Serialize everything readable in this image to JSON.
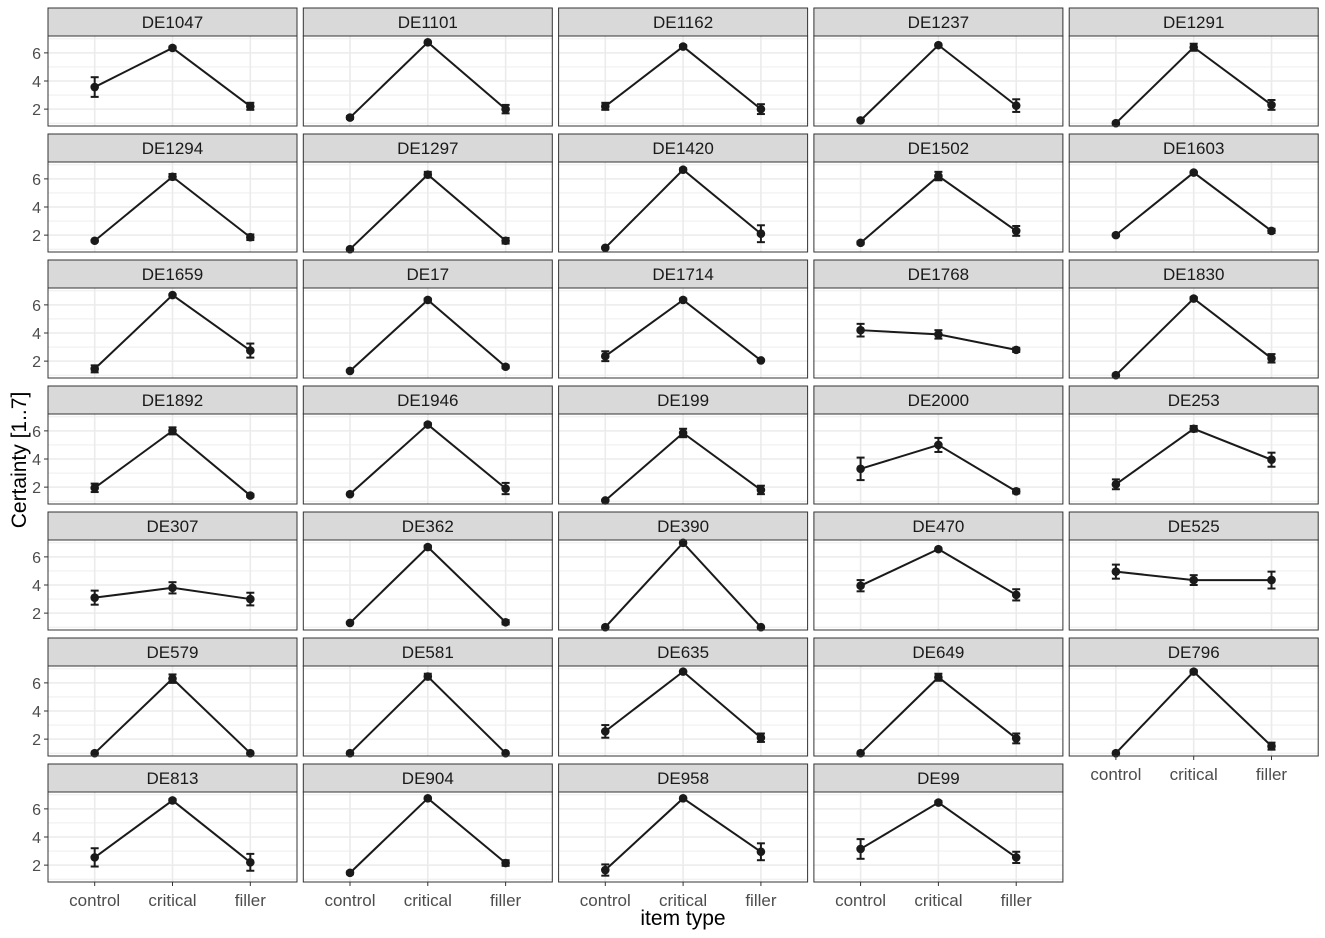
{
  "chart_data": {
    "type": "line",
    "facet_layout": {
      "columns": 5,
      "rows": 7
    },
    "xlabel": "item type",
    "ylabel": "Certainty [1..7]",
    "categories": [
      "control",
      "critical",
      "filler"
    ],
    "y_ticks": [
      2,
      4,
      6
    ],
    "ylim": [
      0.8,
      7.2
    ],
    "grid": true,
    "error_bars": true,
    "colors": {
      "line": "#1a1a1a",
      "strip_fill": "#d9d9d9",
      "strip_border": "#333333",
      "grid": "#ebebeb",
      "panel_border": "#333333",
      "text": "#4d4d4d"
    },
    "panels": [
      {
        "title": "DE1047",
        "values": [
          3.57,
          6.35,
          2.2
        ],
        "errors": [
          0.7,
          0.1,
          0.25
        ]
      },
      {
        "title": "DE1101",
        "values": [
          1.4,
          6.75,
          2.0
        ],
        "errors": [
          0.1,
          0.05,
          0.3
        ]
      },
      {
        "title": "DE1162",
        "values": [
          2.2,
          6.45,
          2.0
        ],
        "errors": [
          0.25,
          0.1,
          0.35
        ]
      },
      {
        "title": "DE1237",
        "values": [
          1.2,
          6.55,
          2.25
        ],
        "errors": [
          0.05,
          0.05,
          0.45
        ]
      },
      {
        "title": "DE1291",
        "values": [
          1.0,
          6.4,
          2.3
        ],
        "errors": [
          0.05,
          0.25,
          0.35
        ]
      },
      {
        "title": "DE1294",
        "values": [
          1.6,
          6.15,
          1.85
        ],
        "errors": [
          0.05,
          0.2,
          0.2
        ]
      },
      {
        "title": "DE1297",
        "values": [
          1.0,
          6.3,
          1.6
        ],
        "errors": [
          0.05,
          0.2,
          0.2
        ]
      },
      {
        "title": "DE1420",
        "values": [
          1.1,
          6.65,
          2.1
        ],
        "errors": [
          0.05,
          0.1,
          0.6
        ]
      },
      {
        "title": "DE1502",
        "values": [
          1.45,
          6.2,
          2.3
        ],
        "errors": [
          0.1,
          0.3,
          0.35
        ]
      },
      {
        "title": "DE1603",
        "values": [
          2.0,
          6.45,
          2.3
        ],
        "errors": [
          0.05,
          0.05,
          0.15
        ]
      },
      {
        "title": "DE1659",
        "values": [
          1.45,
          6.7,
          2.75
        ],
        "errors": [
          0.25,
          0.05,
          0.5
        ]
      },
      {
        "title": "DE17",
        "values": [
          1.3,
          6.35,
          1.6
        ],
        "errors": [
          0.05,
          0.1,
          0.1
        ]
      },
      {
        "title": "DE1714",
        "values": [
          2.35,
          6.35,
          2.05
        ],
        "errors": [
          0.35,
          0.1,
          0.05
        ]
      },
      {
        "title": "DE1768",
        "values": [
          4.2,
          3.9,
          2.8
        ],
        "errors": [
          0.45,
          0.3,
          0.15
        ]
      },
      {
        "title": "DE1830",
        "values": [
          1.0,
          6.45,
          2.2
        ],
        "errors": [
          0.05,
          0.1,
          0.3
        ]
      },
      {
        "title": "DE1892",
        "values": [
          1.95,
          6.0,
          1.4
        ],
        "errors": [
          0.3,
          0.25,
          0.1
        ]
      },
      {
        "title": "DE1946",
        "values": [
          1.5,
          6.45,
          1.9
        ],
        "errors": [
          0.05,
          0.1,
          0.4
        ]
      },
      {
        "title": "DE199",
        "values": [
          1.05,
          5.85,
          1.8
        ],
        "errors": [
          0.05,
          0.3,
          0.3
        ]
      },
      {
        "title": "DE2000",
        "values": [
          3.3,
          5.0,
          1.7
        ],
        "errors": [
          0.8,
          0.5,
          0.15
        ]
      },
      {
        "title": "DE253",
        "values": [
          2.2,
          6.15,
          3.95
        ],
        "errors": [
          0.35,
          0.2,
          0.5
        ]
      },
      {
        "title": "DE307",
        "values": [
          3.1,
          3.8,
          3.0
        ],
        "errors": [
          0.5,
          0.4,
          0.45
        ]
      },
      {
        "title": "DE362",
        "values": [
          1.3,
          6.7,
          1.35
        ],
        "errors": [
          0.05,
          0.1,
          0.15
        ]
      },
      {
        "title": "DE390",
        "values": [
          1.0,
          7.0,
          1.0
        ],
        "errors": [
          0.0,
          0.0,
          0.0
        ]
      },
      {
        "title": "DE470",
        "values": [
          3.95,
          6.55,
          3.3
        ],
        "errors": [
          0.4,
          0.05,
          0.4
        ]
      },
      {
        "title": "DE525",
        "values": [
          4.95,
          4.35,
          4.35
        ],
        "errors": [
          0.5,
          0.35,
          0.6
        ]
      },
      {
        "title": "DE579",
        "values": [
          1.0,
          6.3,
          1.0
        ],
        "errors": [
          0.0,
          0.3,
          0.0
        ]
      },
      {
        "title": "DE581",
        "values": [
          1.0,
          6.45,
          1.0
        ],
        "errors": [
          0.0,
          0.2,
          0.0
        ]
      },
      {
        "title": "DE635",
        "values": [
          2.55,
          6.8,
          2.1
        ],
        "errors": [
          0.45,
          0.05,
          0.3
        ]
      },
      {
        "title": "DE649",
        "values": [
          1.0,
          6.4,
          2.05
        ],
        "errors": [
          0.0,
          0.25,
          0.35
        ]
      },
      {
        "title": "DE796",
        "values": [
          1.0,
          6.8,
          1.5
        ],
        "errors": [
          0.0,
          0.1,
          0.25
        ]
      },
      {
        "title": "DE813",
        "values": [
          2.55,
          6.6,
          2.2
        ],
        "errors": [
          0.65,
          0.1,
          0.6
        ]
      },
      {
        "title": "DE904",
        "values": [
          1.45,
          6.75,
          2.15
        ],
        "errors": [
          0.1,
          0.05,
          0.2
        ]
      },
      {
        "title": "DE958",
        "values": [
          1.65,
          6.75,
          2.95
        ],
        "errors": [
          0.4,
          0.05,
          0.6
        ]
      },
      {
        "title": "DE99",
        "values": [
          3.15,
          6.45,
          2.55
        ],
        "errors": [
          0.7,
          0.1,
          0.4
        ]
      }
    ]
  }
}
